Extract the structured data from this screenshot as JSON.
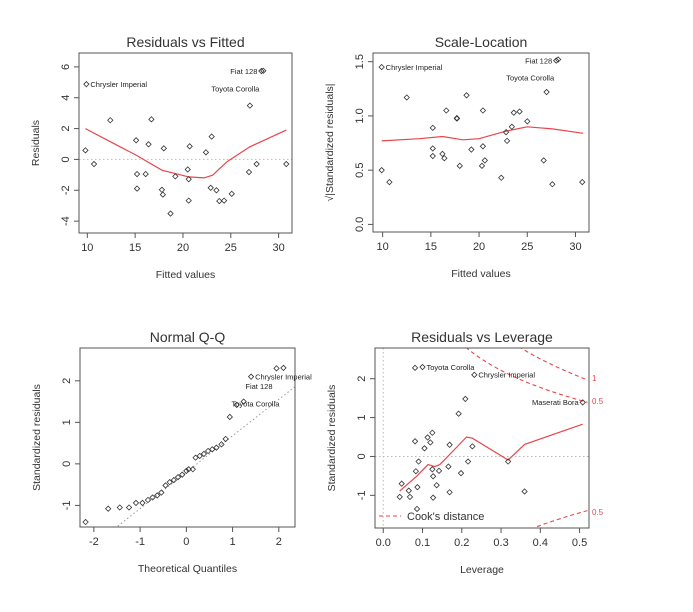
{
  "chart_data": [
    {
      "type": "scatter",
      "title": "Residuals vs Fitted",
      "xlabel": "Fitted values",
      "ylabel": "Residuals",
      "xlim": [
        9.13,
        31.4
      ],
      "ylim": [
        -4.77,
        6.9
      ],
      "xticks": [
        "10",
        "15",
        "20",
        "25",
        "30"
      ],
      "yticks": [
        "-4",
        "-2",
        "0",
        "2",
        "4",
        "6"
      ],
      "reference_lines": [
        {
          "kind": "horizontal",
          "value": 0,
          "style": "dotted",
          "color": "#bbbbbb"
        }
      ],
      "points": [
        [
          9.8,
          0.59
        ],
        [
          10.7,
          -0.3
        ],
        [
          12.4,
          2.54
        ],
        [
          15.1,
          1.24
        ],
        [
          15.2,
          -0.95
        ],
        [
          15.2,
          -1.89
        ],
        [
          16.1,
          -0.95
        ],
        [
          16.4,
          0.98
        ],
        [
          16.7,
          2.6
        ],
        [
          17.8,
          -1.97
        ],
        [
          17.9,
          -2.28
        ],
        [
          18.0,
          0.72
        ],
        [
          18.7,
          -3.51
        ],
        [
          19.2,
          -1.1
        ],
        [
          20.6,
          -2.67
        ],
        [
          20.5,
          -0.65
        ],
        [
          20.6,
          -1.28
        ],
        [
          20.7,
          0.85
        ],
        [
          22.4,
          0.46
        ],
        [
          22.9,
          -1.84
        ],
        [
          23.0,
          1.48
        ],
        [
          23.5,
          -2.0
        ],
        [
          23.8,
          -2.7
        ],
        [
          24.3,
          -2.67
        ],
        [
          25.1,
          -2.23
        ],
        [
          26.9,
          -0.82
        ],
        [
          27.0,
          3.49
        ],
        [
          27.7,
          -0.3
        ],
        [
          30.8,
          -0.3
        ]
      ],
      "labeled_points": [
        {
          "label": "Chrysler Imperial",
          "x": 9.9,
          "y": 4.88,
          "side": "right"
        },
        {
          "label": "Fiat 128",
          "x": 28.2,
          "y": 5.73,
          "side": "left"
        },
        {
          "label": "Toyota Corolla",
          "x": 28.4,
          "y": 5.75,
          "side": "left"
        }
      ],
      "smoother": [
        [
          9.8,
          2.0
        ],
        [
          12.4,
          1.15
        ],
        [
          15.1,
          0.28
        ],
        [
          17.8,
          -0.7
        ],
        [
          20.6,
          -1.13
        ],
        [
          22.2,
          -1.2
        ],
        [
          23.1,
          -1.02
        ],
        [
          24.6,
          -0.15
        ],
        [
          27.0,
          0.82
        ],
        [
          30.8,
          1.9
        ]
      ],
      "smoother_color": "#e8464b"
    },
    {
      "type": "scatter",
      "title": "Scale-Location",
      "xlabel": "Fitted values",
      "ylabel": "√|Standardized residuals|",
      "xlim": [
        9.0,
        31.4
      ],
      "ylim": [
        -0.07,
        1.58
      ],
      "xticks": [
        "10",
        "15",
        "20",
        "25",
        "30"
      ],
      "yticks": [
        "0.0",
        "0.5",
        "1.0",
        "1.5"
      ],
      "reference_lines": [],
      "points": [
        [
          9.9,
          0.5
        ],
        [
          10.7,
          0.39
        ],
        [
          12.5,
          1.17
        ],
        [
          15.2,
          0.89
        ],
        [
          15.2,
          0.7
        ],
        [
          15.2,
          0.63
        ],
        [
          16.2,
          0.65
        ],
        [
          16.4,
          0.61
        ],
        [
          16.6,
          1.05
        ],
        [
          17.7,
          0.98
        ],
        [
          17.7,
          0.975
        ],
        [
          18.0,
          0.54
        ],
        [
          18.7,
          1.19
        ],
        [
          19.2,
          0.69
        ],
        [
          20.3,
          0.54
        ],
        [
          20.4,
          1.05
        ],
        [
          20.4,
          0.72
        ],
        [
          20.6,
          0.59
        ],
        [
          22.3,
          0.43
        ],
        [
          22.8,
          0.85
        ],
        [
          22.9,
          0.77
        ],
        [
          23.4,
          0.9
        ],
        [
          23.6,
          1.03
        ],
        [
          24.2,
          1.04
        ],
        [
          25.0,
          0.95
        ],
        [
          26.7,
          0.59
        ],
        [
          27.0,
          1.22
        ],
        [
          27.6,
          0.37
        ],
        [
          30.7,
          0.39
        ]
      ],
      "labeled_points": [
        {
          "label": "Chrysler Imperial",
          "x": 9.9,
          "y": 1.45,
          "side": "right"
        },
        {
          "label": "Fiat 128",
          "x": 28.0,
          "y": 1.51,
          "side": "left"
        },
        {
          "label": "Toyota Corolla",
          "x": 28.2,
          "y": 1.52,
          "side": "left"
        }
      ],
      "smoother": [
        [
          9.9,
          0.77
        ],
        [
          13.8,
          0.79
        ],
        [
          16.2,
          0.81
        ],
        [
          18.3,
          0.78
        ],
        [
          20.0,
          0.79
        ],
        [
          22.8,
          0.86
        ],
        [
          25.0,
          0.9
        ],
        [
          27.6,
          0.88
        ],
        [
          30.8,
          0.84
        ]
      ],
      "smoother_color": "#e8464b"
    },
    {
      "type": "scatter",
      "title": "Normal Q-Q",
      "xlabel": "Theoretical Quantiles",
      "ylabel": "Standardized residuals",
      "xlim": [
        -2.3,
        2.35
      ],
      "ylim": [
        -1.52,
        2.79
      ],
      "xticks": [
        "-2",
        "-1",
        "0",
        "1",
        "2"
      ],
      "yticks": [
        "-1",
        "0",
        "1",
        "2"
      ],
      "reference_lines": [
        {
          "kind": "abline",
          "intercept": -0.2,
          "slope": 0.876,
          "style": "dotted",
          "color": "#999999"
        }
      ],
      "points": [
        [
          -2.18,
          -1.4
        ],
        [
          -1.69,
          -1.08
        ],
        [
          -1.44,
          -1.05
        ],
        [
          -1.24,
          -1.05
        ],
        [
          -1.09,
          -0.94
        ],
        [
          -0.95,
          -0.94
        ],
        [
          -0.83,
          -0.87
        ],
        [
          -0.73,
          -0.81
        ],
        [
          -0.63,
          -0.76
        ],
        [
          -0.54,
          -0.69
        ],
        [
          -0.45,
          -0.52
        ],
        [
          -0.36,
          -0.44
        ],
        [
          -0.27,
          -0.39
        ],
        [
          -0.18,
          -0.32
        ],
        [
          -0.09,
          -0.26
        ],
        [
          0.0,
          -0.17
        ],
        [
          0.05,
          -0.13
        ],
        [
          0.14,
          -0.13
        ],
        [
          0.2,
          0.15
        ],
        [
          0.29,
          0.19
        ],
        [
          0.38,
          0.24
        ],
        [
          0.47,
          0.31
        ],
        [
          0.56,
          0.35
        ],
        [
          0.65,
          0.39
        ],
        [
          0.76,
          0.47
        ],
        [
          0.85,
          0.6
        ],
        [
          0.94,
          1.13
        ],
        [
          1.09,
          1.42
        ],
        [
          1.24,
          1.5
        ]
      ],
      "labeled_points": [
        {
          "label": "Chrysler Imperial",
          "x": 1.4,
          "y": 2.1,
          "side": "right"
        },
        {
          "label": "Fiat 128",
          "x": 1.95,
          "y": 2.3,
          "side": "left"
        },
        {
          "label": "Toyota Corolla",
          "x": 2.1,
          "y": 2.31,
          "side": "left"
        }
      ],
      "smoother": [],
      "smoother_color": "#e8464b"
    },
    {
      "type": "scatter",
      "title": "Residuals vs Leverage",
      "xlabel": "Leverage",
      "ylabel": "Standardized residuals",
      "xlim": [
        -0.021,
        0.524
      ],
      "ylim": [
        -1.84,
        2.79
      ],
      "xticks": [
        "0.0",
        "0.1",
        "0.2",
        "0.3",
        "0.4",
        "0.5"
      ],
      "yticks": [
        "-1",
        "0",
        "1",
        "2"
      ],
      "reference_lines": [
        {
          "kind": "horizontal",
          "value": 0,
          "style": "dotted",
          "color": "#bbbbbb"
        },
        {
          "kind": "vertical",
          "value": 0,
          "style": "dotted",
          "color": "#bbbbbb"
        }
      ],
      "points": [
        [
          0.042,
          -1.04
        ],
        [
          0.047,
          -0.7
        ],
        [
          0.065,
          -0.88
        ],
        [
          0.068,
          -1.04
        ],
        [
          0.081,
          0.39
        ],
        [
          0.083,
          -0.38
        ],
        [
          0.086,
          -1.35
        ],
        [
          0.087,
          -0.79
        ],
        [
          0.09,
          -0.13
        ],
        [
          0.081,
          2.28
        ],
        [
          0.105,
          0.21
        ],
        [
          0.113,
          0.49
        ],
        [
          0.12,
          0.36
        ],
        [
          0.125,
          0.61
        ],
        [
          0.125,
          -0.33
        ],
        [
          0.127,
          -0.51
        ],
        [
          0.127,
          -1.06
        ],
        [
          0.136,
          -0.74
        ],
        [
          0.142,
          -0.37
        ],
        [
          0.166,
          -0.26
        ],
        [
          0.169,
          0.3
        ],
        [
          0.169,
          -0.92
        ],
        [
          0.192,
          1.1
        ],
        [
          0.198,
          -0.43
        ],
        [
          0.209,
          1.48
        ],
        [
          0.216,
          -0.13
        ],
        [
          0.227,
          0.26
        ],
        [
          0.318,
          -0.13
        ],
        [
          0.36,
          -0.9
        ]
      ],
      "labeled_points": [
        {
          "label": "Toyota Corolla",
          "x": 0.1,
          "y": 2.3,
          "side": "right"
        },
        {
          "label": "Chrysler Imperial",
          "x": 0.232,
          "y": 2.1,
          "side": "right"
        },
        {
          "label": "Maserati Bora",
          "x": 0.508,
          "y": 1.39,
          "side": "left"
        }
      ],
      "smoother": [
        [
          0.042,
          -0.89
        ],
        [
          0.085,
          -0.51
        ],
        [
          0.114,
          -0.21
        ],
        [
          0.131,
          -0.26
        ],
        [
          0.144,
          -0.21
        ],
        [
          0.178,
          0.14
        ],
        [
          0.212,
          0.5
        ],
        [
          0.227,
          0.47
        ],
        [
          0.318,
          -0.09
        ],
        [
          0.36,
          0.31
        ],
        [
          0.508,
          0.83
        ]
      ],
      "smoother_color": "#e8464b",
      "cooks_distance": {
        "legend": "Cook's distance",
        "legend_position": "bottom-left",
        "levels": [
          {
            "label": "1",
            "value": 1,
            "sign": 1
          },
          {
            "label": "0.5",
            "value": 0.5,
            "sign": 1
          },
          {
            "label": "0.5",
            "value": 0.5,
            "sign": -1
          }
        ]
      }
    }
  ]
}
